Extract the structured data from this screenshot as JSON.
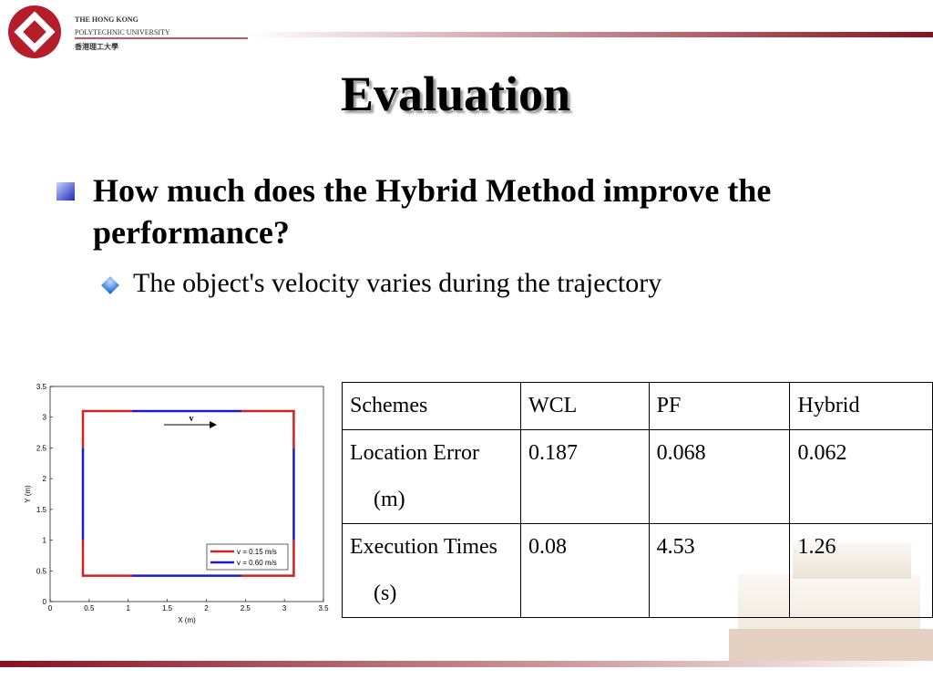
{
  "header": {
    "line1": "THE HONG KONG",
    "line2": "POLYTECHNIC UNIVERSITY",
    "line3": "香港理工大學"
  },
  "title": "Evaluation",
  "bullets": [
    "How much does the Hybrid Method improve the performance?",
    "The object's velocity varies during the trajectory"
  ],
  "chart_data": {
    "type": "line",
    "xlabel": "X (m)",
    "ylabel": "Y (m)",
    "annotation": "v",
    "xlim": [
      0,
      3.5
    ],
    "ylim": [
      0,
      3.5
    ],
    "xticks": [
      0,
      0.5,
      1,
      1.5,
      2,
      2.5,
      3,
      3.5
    ],
    "yticks": [
      0,
      0.5,
      1,
      1.5,
      2,
      2.5,
      3,
      3.5
    ],
    "legend": "lower right",
    "series": [
      {
        "name": "v = 0.15 m/s",
        "color": "#d42020",
        "x": [
          1.05,
          0.42,
          0.42,
          null,
          0.42,
          0.42,
          1.05,
          null,
          2.45,
          3.12,
          3.12,
          null,
          3.12,
          3.12,
          2.45
        ],
        "y": [
          3.1,
          3.1,
          2.5,
          null,
          1.0,
          0.42,
          0.42,
          null,
          0.42,
          0.42,
          1.0,
          null,
          2.5,
          3.1,
          3.1
        ]
      },
      {
        "name": "v = 0.60 m/s",
        "color": "#1a1ac8",
        "x": [
          1.05,
          2.45,
          null,
          3.12,
          3.12,
          null,
          2.45,
          1.05,
          null,
          0.42,
          0.42
        ],
        "y": [
          3.1,
          3.1,
          null,
          2.5,
          1.0,
          null,
          0.42,
          0.42,
          null,
          1.0,
          2.5
        ]
      }
    ]
  },
  "table": {
    "rows": [
      [
        "Schemes",
        "WCL",
        "PF",
        "Hybrid"
      ],
      [
        "Location Error (m)",
        "0.187",
        "0.068",
        "0.062"
      ],
      [
        "Execution Times (s)",
        "0.08",
        "4.53",
        "1.26"
      ]
    ]
  }
}
